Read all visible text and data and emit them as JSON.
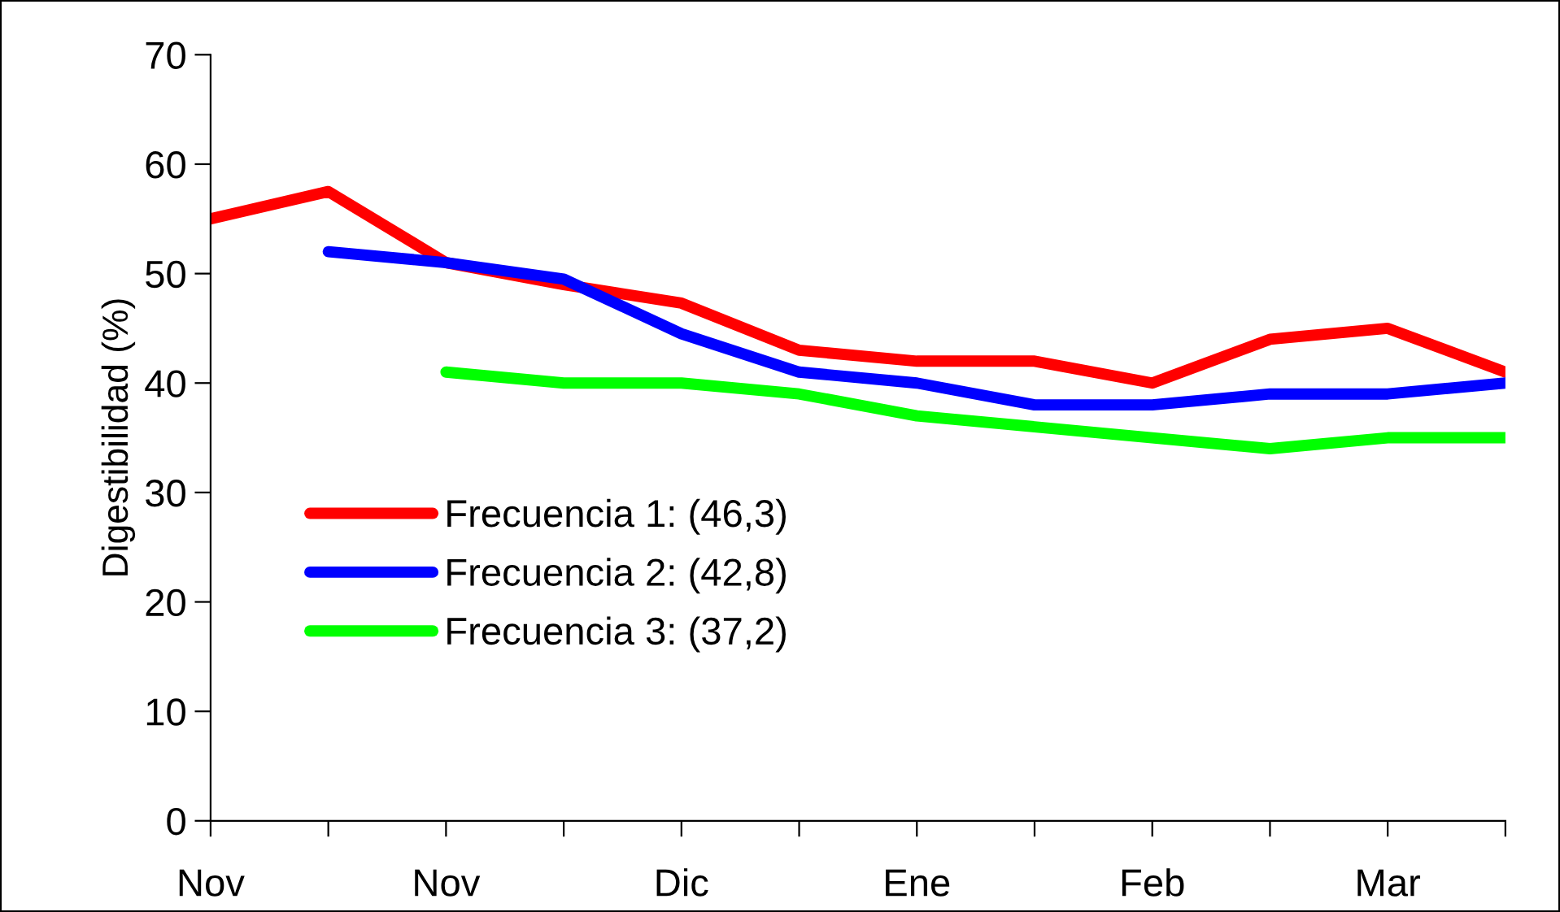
{
  "chart_data": {
    "type": "line",
    "ylabel": "Digestibilidad (%)",
    "categories": [
      "Nov",
      null,
      "Nov",
      null,
      "Dic",
      null,
      "Ene",
      null,
      "Feb",
      null,
      "Mar",
      null
    ],
    "ylim": [
      0,
      70
    ],
    "yticks": [
      0,
      10,
      20,
      30,
      40,
      50,
      60,
      70
    ],
    "grid": false,
    "legend": "center left",
    "marker": "none",
    "line_style": "solid",
    "series": [
      {
        "name": "Frecuencia 1: (46,3)",
        "color": "#ff0000",
        "values": [
          55,
          57.5,
          51,
          49,
          47.3,
          43,
          42,
          42,
          40,
          44,
          45,
          41
        ]
      },
      {
        "name": "Frecuencia 2: (42,8)",
        "color": "#0000ff",
        "values": [
          null,
          52,
          51,
          49.5,
          44.5,
          41,
          40,
          38,
          38,
          39,
          39,
          40
        ]
      },
      {
        "name": "Frecuencia 3: (37,2)",
        "color": "#00ff00",
        "values": [
          null,
          null,
          41,
          40,
          40,
          39,
          37,
          36,
          35,
          34,
          35,
          35
        ]
      }
    ]
  }
}
